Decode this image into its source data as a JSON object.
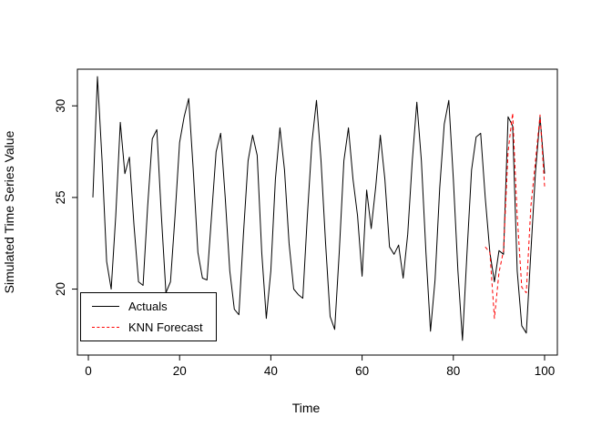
{
  "chart_data": {
    "type": "line",
    "title": "",
    "xlabel": "Time",
    "ylabel": "Simulated Time Series Value",
    "xlim": [
      -2.4,
      102.8
    ],
    "ylim": [
      16.4,
      32.0
    ],
    "x_ticks": [
      0,
      20,
      40,
      60,
      80,
      100
    ],
    "y_ticks": [
      20,
      25,
      30
    ],
    "grid": false,
    "legend": {
      "position": "bottom-left",
      "entries": [
        {
          "label": "Actuals",
          "color": "#000000",
          "dash": "solid"
        },
        {
          "label": "KNN Forecast",
          "color": "#ff0000",
          "dash": "dashed"
        }
      ]
    },
    "series": [
      {
        "name": "Actuals",
        "color": "#000000",
        "dash": "solid",
        "x_start": 1,
        "x_step": 1,
        "values": [
          25.0,
          31.6,
          27.0,
          21.5,
          20.0,
          24.0,
          29.1,
          26.3,
          27.2,
          23.5,
          20.4,
          20.2,
          24.5,
          28.2,
          28.7,
          24.0,
          19.8,
          20.4,
          24.0,
          28.0,
          29.4,
          30.4,
          26.5,
          22.0,
          20.6,
          20.5,
          24.0,
          27.5,
          28.5,
          25.0,
          21.0,
          18.9,
          18.6,
          23.0,
          27.0,
          28.4,
          27.3,
          22.0,
          18.4,
          21.0,
          26.0,
          28.8,
          26.5,
          22.5,
          20.0,
          19.7,
          19.5,
          24.0,
          28.0,
          30.3,
          27.0,
          22.5,
          18.5,
          17.8,
          22.0,
          27.0,
          28.8,
          26.0,
          24.0,
          20.7,
          25.4,
          23.3,
          25.6,
          28.4,
          26.0,
          22.3,
          21.9,
          22.4,
          20.6,
          23.0,
          27.0,
          30.2,
          27.0,
          22.0,
          17.7,
          20.5,
          25.5,
          29.0,
          30.3,
          26.0,
          21.0,
          17.2,
          22.0,
          26.5,
          28.3,
          28.5,
          25.0,
          22.0,
          20.4,
          22.1,
          21.9,
          29.4,
          28.9,
          21.0,
          18.0,
          17.6,
          22.0,
          26.4,
          29.4,
          26.3
        ]
      },
      {
        "name": "KNN Forecast",
        "color": "#ff0000",
        "dash": "dashed",
        "x_start": 87,
        "x_step": 1,
        "values": [
          22.3,
          22.0,
          18.4,
          20.9,
          22.1,
          27.5,
          29.6,
          24.0,
          20.1,
          19.8,
          24.5,
          27.0,
          29.5,
          25.6
        ]
      }
    ]
  },
  "colors": {
    "axis": "#000000",
    "background": "#ffffff",
    "actuals": "#000000",
    "forecast": "#ff0000"
  }
}
